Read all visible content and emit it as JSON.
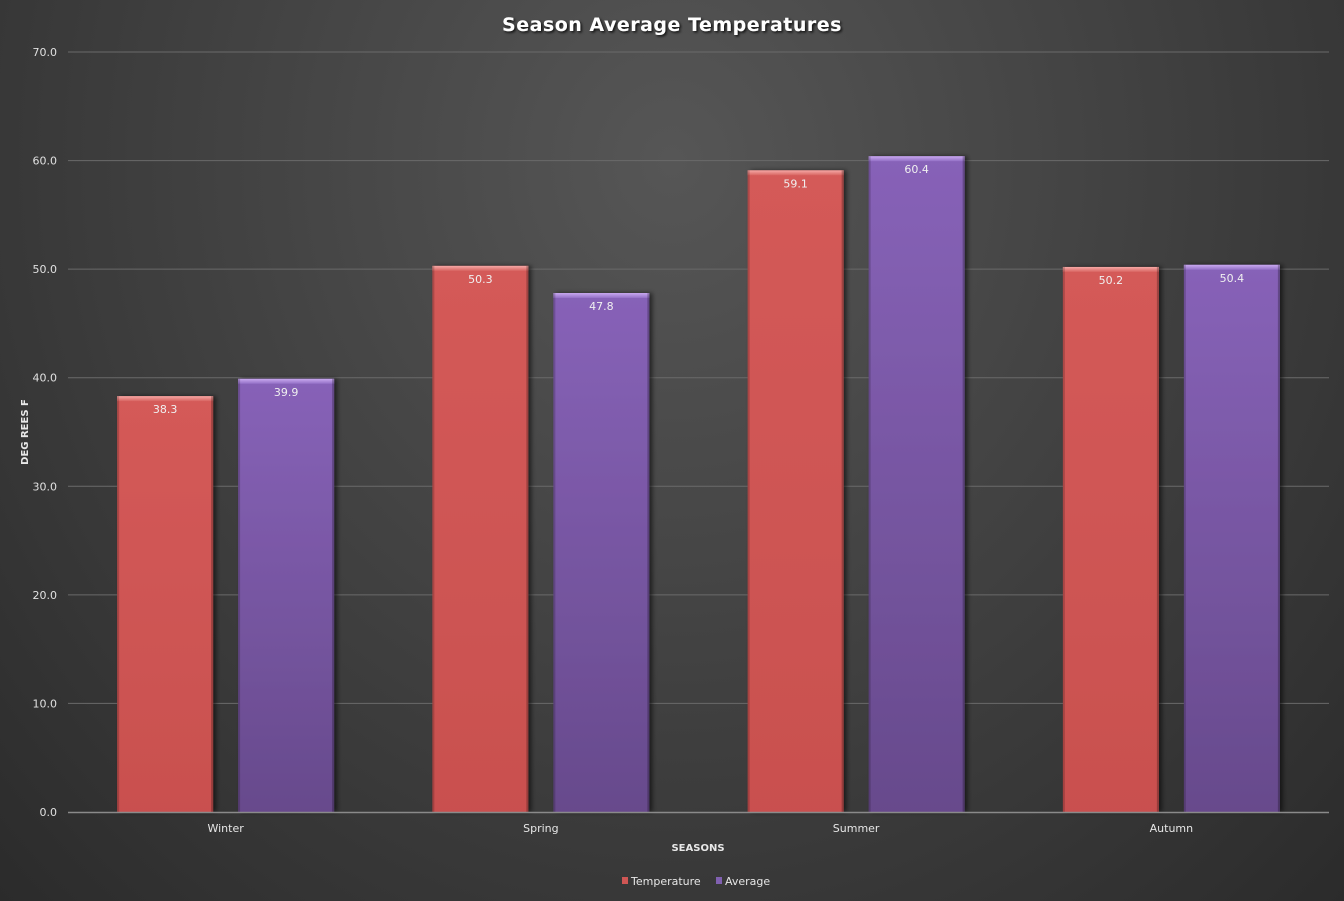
{
  "chart_data": {
    "type": "bar",
    "title": "Season Average Temperatures",
    "xlabel": "SEASONS",
    "ylabel": "DEG REES F",
    "categories": [
      "Winter",
      "Spring",
      "Summer",
      "Autumn"
    ],
    "series": [
      {
        "name": "Temperature",
        "values": [
          38.3,
          50.3,
          59.1,
          50.2
        ],
        "color": "#cf5654"
      },
      {
        "name": "Average",
        "values": [
          39.9,
          47.8,
          60.4,
          50.4
        ],
        "color": "#8060b0"
      }
    ],
    "ylim": [
      0,
      70
    ],
    "yticks": [
      "0.0",
      "10.0",
      "20.0",
      "30.0",
      "40.0",
      "50.0",
      "60.0",
      "70.0"
    ],
    "data_labels": [
      [
        "38.3",
        "50.3",
        "59.1",
        "50.2"
      ],
      [
        "39.9",
        "47.8",
        "60.4",
        "50.4"
      ]
    ],
    "grid": true,
    "legend_position": "bottom"
  }
}
